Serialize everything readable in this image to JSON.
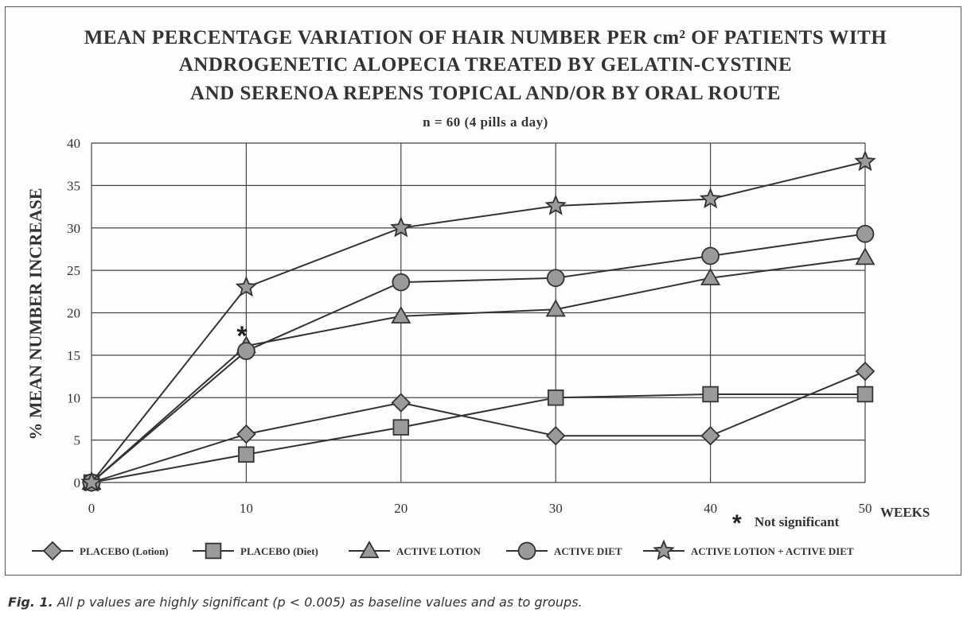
{
  "title_lines": [
    "MEAN PERCENTAGE VARIATION OF HAIR NUMBER PER cm² OF PATIENTS WITH",
    "ANDROGENETIC ALOPECIA TREATED BY GELATIN-CYSTINE",
    "AND SERENOA REPENS TOPICAL  AND/OR BY ORAL ROUTE"
  ],
  "subtitle": "n = 60  (4 pills a day)",
  "note_marker": "*",
  "note_text": "Not significant",
  "caption_label": "Fig. 1.",
  "caption_text": " All p values are highly significant (p < 0.005) as baseline values and as to groups.",
  "colors": {
    "line": "#333333",
    "marker_fill": "#9a9a9a",
    "grid": "#444444"
  },
  "chart_data": {
    "type": "line",
    "title": "MEAN PERCENTAGE VARIATION OF HAIR NUMBER PER cm² OF PATIENTS WITH ANDROGENETIC ALOPECIA TREATED BY GELATIN-CYSTINE AND SERENOA REPENS TOPICAL  AND/OR BY ORAL ROUTE",
    "subtitle": "n = 60  (4 pills a day)",
    "xlabel": "WEEKS",
    "ylabel": "% MEAN NUMBER INCREASE",
    "x": [
      0,
      10,
      20,
      30,
      40,
      50
    ],
    "xlim": [
      0,
      50
    ],
    "ylim": [
      0,
      40
    ],
    "xticks": [
      0,
      10,
      20,
      30,
      40,
      50
    ],
    "yticks": [
      0,
      5,
      10,
      15,
      20,
      25,
      30,
      35,
      40
    ],
    "grid": true,
    "legend_position": "bottom",
    "series": [
      {
        "name": "PLACEBO (Lotion)",
        "marker": "diamond",
        "values": [
          0,
          5.7,
          9.4,
          5.5,
          5.5,
          13.1
        ]
      },
      {
        "name": "PLACEBO (Diet)",
        "marker": "square",
        "values": [
          0,
          3.3,
          6.5,
          10.0,
          10.4,
          10.4
        ]
      },
      {
        "name": "ACTIVE LOTION",
        "marker": "triangle",
        "values": [
          0,
          16.1,
          19.6,
          20.4,
          24.1,
          26.5
        ]
      },
      {
        "name": "ACTIVE DIET",
        "marker": "circle",
        "values": [
          0,
          15.5,
          23.6,
          24.1,
          26.7,
          29.3
        ]
      },
      {
        "name": "ACTIVE LOTION + ACTIVE DIET",
        "marker": "star",
        "values": [
          0,
          23.0,
          30.0,
          32.6,
          33.4,
          37.8
        ]
      }
    ],
    "annotations": [
      {
        "text": "*",
        "x": 10,
        "y": 17.5
      }
    ]
  }
}
